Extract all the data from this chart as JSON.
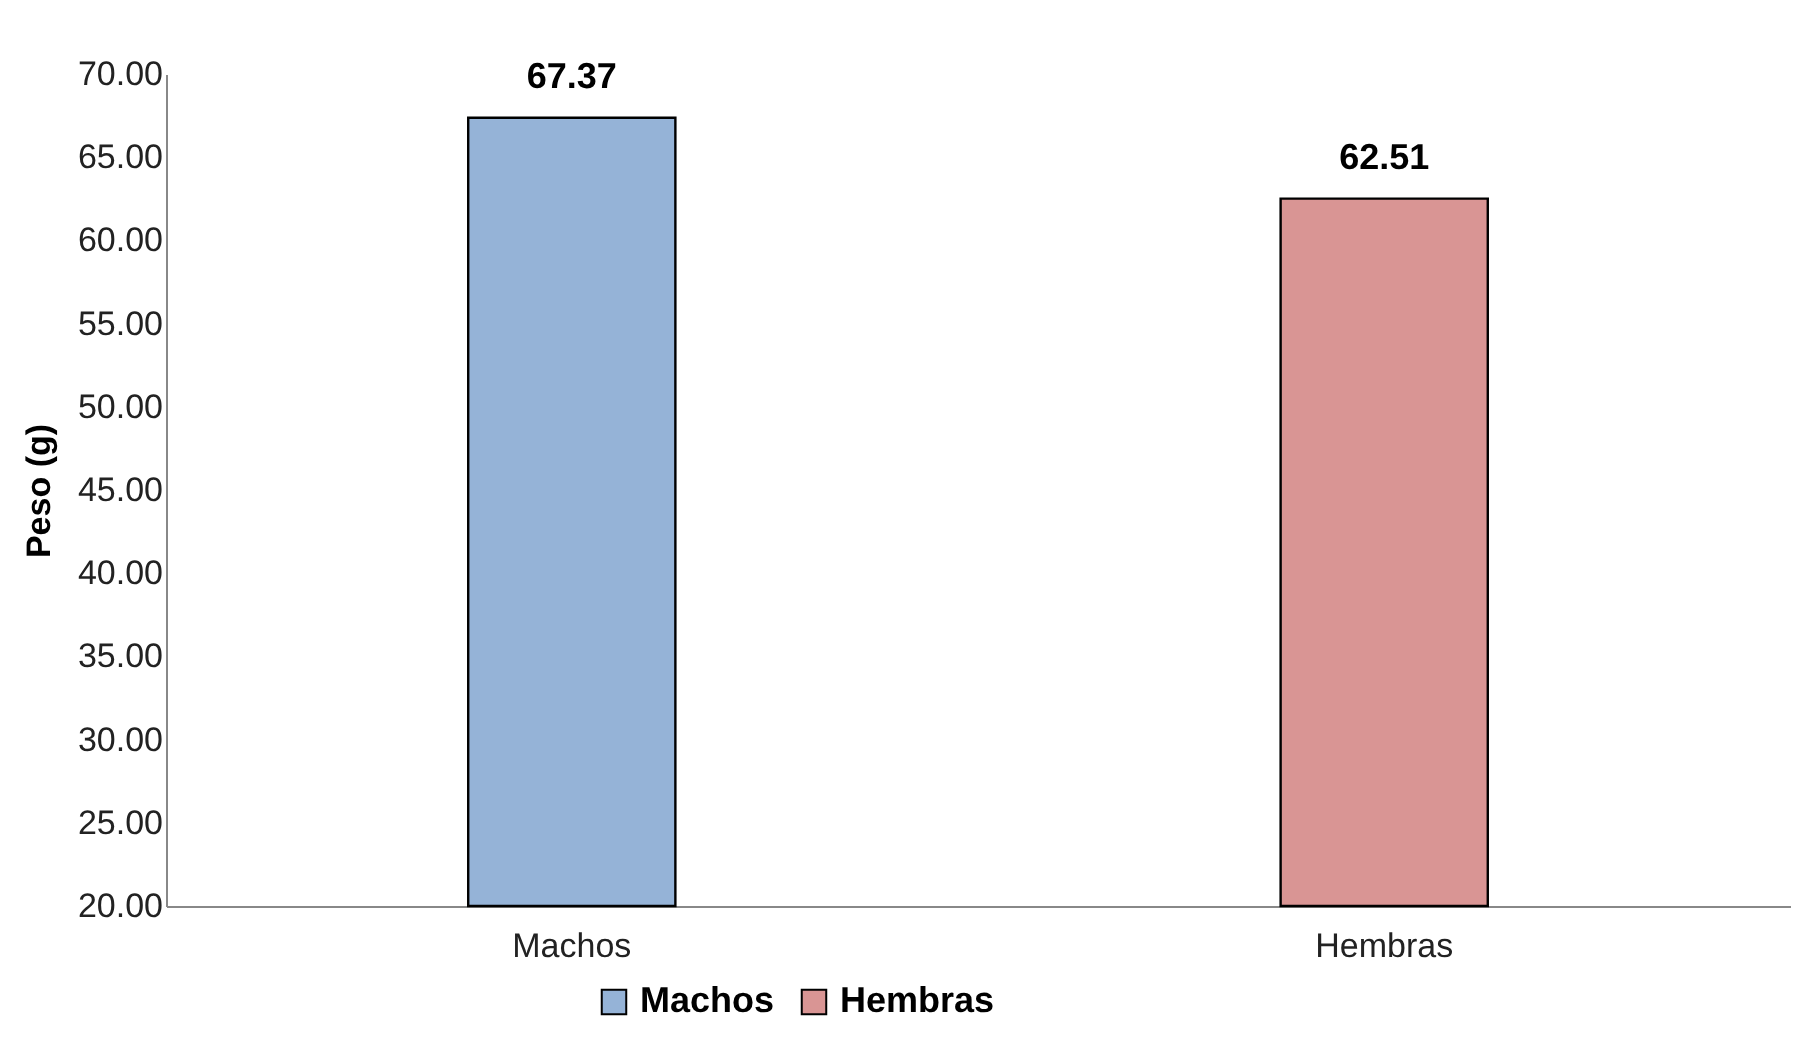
{
  "chart_data": {
    "type": "bar",
    "ylabel": "Peso (g)",
    "categories": [
      "Machos",
      "Hembras"
    ],
    "series": [
      {
        "name": "Machos",
        "color": "#95b3d7",
        "values": [
          67.37,
          null
        ]
      },
      {
        "name": "Hembras",
        "color": "#d99594",
        "values": [
          null,
          62.51
        ]
      }
    ],
    "ylim": [
      20,
      70
    ],
    "yticks": [
      {
        "value": 20,
        "label": "20.00"
      },
      {
        "value": 25,
        "label": "25.00"
      },
      {
        "value": 30,
        "label": "30.00"
      },
      {
        "value": 35,
        "label": "35.00"
      },
      {
        "value": 40,
        "label": "40.00"
      },
      {
        "value": 45,
        "label": "45.00"
      },
      {
        "value": 50,
        "label": "50.00"
      },
      {
        "value": 55,
        "label": "55.00"
      },
      {
        "value": 60,
        "label": "60.00"
      },
      {
        "value": 65,
        "label": "65.00"
      },
      {
        "value": 70,
        "label": "70.00"
      }
    ],
    "data_labels": true,
    "legend": "bottom",
    "grid": false
  }
}
